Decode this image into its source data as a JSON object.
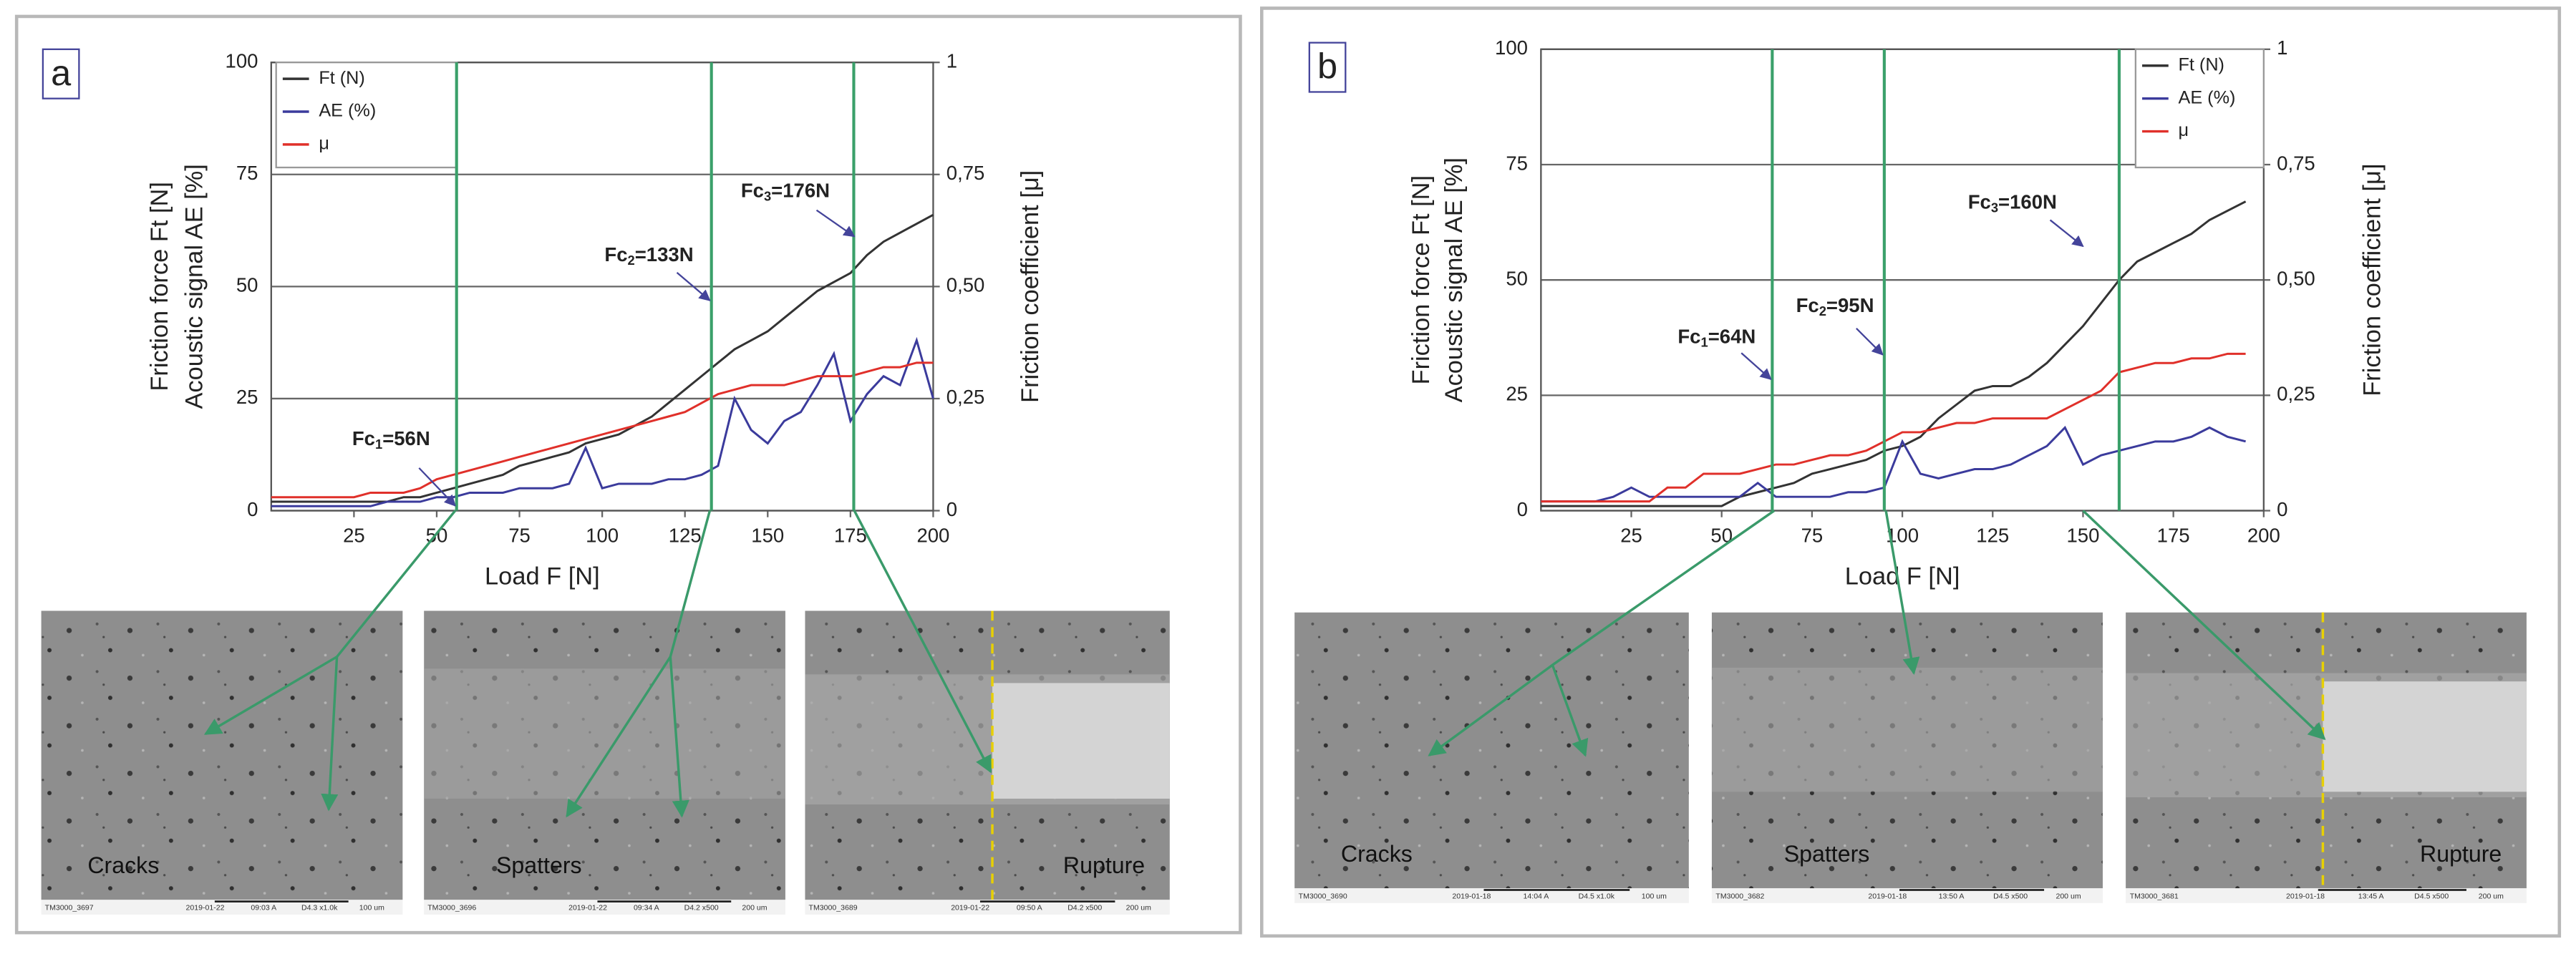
{
  "chart_data": [
    {
      "type": "line",
      "panel_label": "a",
      "x_label": "Load F [N]",
      "y_label_lines": [
        "Friction force Ft [N]",
        "Acoustic signal AE [%]"
      ],
      "y2_label": "Friction coefficient [μ]",
      "xlim": [
        0,
        200
      ],
      "xticks": [
        25,
        50,
        75,
        100,
        125,
        150,
        175,
        200
      ],
      "ylim": [
        0,
        100
      ],
      "yticks": [
        0,
        25,
        50,
        75,
        100
      ],
      "y2lim": [
        0,
        1
      ],
      "y2ticks": [
        0,
        {
          "value": 0.25,
          "label": "0,25"
        },
        {
          "value": 0.5,
          "label": "0,50"
        },
        {
          "value": 0.75,
          "label": "0,75"
        },
        1
      ],
      "legend": "upper left",
      "grid": true,
      "x": [
        0,
        5,
        10,
        15,
        20,
        25,
        30,
        35,
        40,
        45,
        50,
        55,
        60,
        65,
        70,
        75,
        80,
        85,
        90,
        95,
        100,
        105,
        110,
        115,
        120,
        125,
        130,
        135,
        140,
        145,
        150,
        155,
        160,
        165,
        170,
        175,
        180,
        185,
        190,
        195,
        200
      ],
      "series": [
        {
          "name": "Ft (N)",
          "color": "#333333",
          "values": [
            2,
            2,
            2,
            2,
            2,
            2,
            2,
            2,
            3,
            3,
            4,
            5,
            6,
            7,
            8,
            10,
            11,
            12,
            13,
            15,
            16,
            17,
            19,
            21,
            24,
            27,
            30,
            33,
            36,
            38,
            40,
            43,
            46,
            49,
            51,
            53,
            57,
            60,
            62,
            64,
            66
          ]
        },
        {
          "name": "AE (%)",
          "color": "#3b3b9c",
          "values": [
            1,
            1,
            1,
            1,
            1,
            1,
            1,
            2,
            2,
            2,
            3,
            3,
            4,
            4,
            4,
            5,
            5,
            5,
            6,
            14,
            5,
            6,
            6,
            6,
            7,
            7,
            8,
            10,
            25,
            18,
            15,
            20,
            22,
            28,
            35,
            20,
            26,
            30,
            28,
            38,
            25
          ]
        },
        {
          "name": "μ",
          "color": "#e0302a",
          "axis": "y2",
          "values": [
            0.03,
            0.03,
            0.03,
            0.03,
            0.03,
            0.03,
            0.04,
            0.04,
            0.04,
            0.05,
            0.07,
            0.08,
            0.09,
            0.1,
            0.11,
            0.12,
            0.13,
            0.14,
            0.15,
            0.16,
            0.17,
            0.18,
            0.19,
            0.2,
            0.21,
            0.22,
            0.24,
            0.26,
            0.27,
            0.28,
            0.28,
            0.28,
            0.29,
            0.3,
            0.3,
            0.3,
            0.31,
            0.32,
            0.32,
            0.33,
            0.33
          ]
        }
      ],
      "markers": [
        56,
        133,
        176
      ],
      "annotations": [
        {
          "main": "Fc",
          "sub": "1",
          "tail": "=56N"
        },
        {
          "main": "Fc",
          "sub": "2",
          "tail": "=133N"
        },
        {
          "main": "Fc",
          "sub": "3",
          "tail": "=176N"
        }
      ],
      "photos": [
        {
          "caption": "Cracks",
          "footer": [
            "TM3000_3697",
            "2019-01-22",
            "09:03 A",
            "D4.3 x1.0k",
            "100 um"
          ]
        },
        {
          "caption": "Spatters",
          "footer": [
            "TM3000_3696",
            "2019-01-22",
            "09:34 A",
            "D4.2 x500",
            "200 um"
          ]
        },
        {
          "caption": "Rupture",
          "footer": [
            "TM3000_3689",
            "2019-01-22",
            "09:50 A",
            "D4.2 x500",
            "200 um"
          ]
        }
      ]
    },
    {
      "type": "line",
      "panel_label": "b",
      "x_label": "Load F [N]",
      "y_label_lines": [
        "Friction force Ft [N]",
        "Acoustic signal AE [%]"
      ],
      "y2_label": "Friction coefficient [μ]",
      "xlim": [
        0,
        200
      ],
      "xticks": [
        25,
        50,
        75,
        100,
        125,
        150,
        175,
        200
      ],
      "ylim": [
        0,
        100
      ],
      "yticks": [
        0,
        25,
        50,
        75,
        100
      ],
      "y2lim": [
        0,
        1
      ],
      "y2ticks": [
        0,
        {
          "value": 0.25,
          "label": "0,25"
        },
        {
          "value": 0.5,
          "label": "0,50"
        },
        {
          "value": 0.75,
          "label": "0,75"
        },
        1
      ],
      "legend": "upper right",
      "grid": true,
      "x": [
        0,
        5,
        10,
        15,
        20,
        25,
        30,
        35,
        40,
        45,
        50,
        55,
        60,
        65,
        70,
        75,
        80,
        85,
        90,
        95,
        100,
        105,
        110,
        115,
        120,
        125,
        130,
        135,
        140,
        145,
        150,
        155,
        160,
        165,
        170,
        175,
        180,
        185,
        190,
        195
      ],
      "series": [
        {
          "name": "Ft (N)",
          "color": "#333333",
          "values": [
            1,
            1,
            1,
            1,
            1,
            1,
            1,
            1,
            1,
            1,
            1,
            3,
            4,
            5,
            6,
            8,
            9,
            10,
            11,
            13,
            14,
            16,
            20,
            23,
            26,
            27,
            27,
            29,
            32,
            36,
            40,
            45,
            50,
            54,
            56,
            58,
            60,
            63,
            65,
            67
          ]
        },
        {
          "name": "AE (%)",
          "color": "#3b3b9c",
          "values": [
            2,
            2,
            2,
            2,
            3,
            5,
            3,
            3,
            3,
            3,
            3,
            3,
            6,
            3,
            3,
            3,
            3,
            4,
            4,
            5,
            15,
            8,
            7,
            8,
            9,
            9,
            10,
            12,
            14,
            18,
            10,
            12,
            13,
            14,
            15,
            15,
            16,
            18,
            16,
            15
          ]
        },
        {
          "name": "μ",
          "color": "#e0302a",
          "axis": "y2",
          "values": [
            0.02,
            0.02,
            0.02,
            0.02,
            0.02,
            0.02,
            0.02,
            0.05,
            0.05,
            0.08,
            0.08,
            0.08,
            0.09,
            0.1,
            0.1,
            0.11,
            0.12,
            0.12,
            0.13,
            0.15,
            0.17,
            0.17,
            0.18,
            0.19,
            0.19,
            0.2,
            0.2,
            0.2,
            0.2,
            0.22,
            0.24,
            0.26,
            0.3,
            0.31,
            0.32,
            0.32,
            0.33,
            0.33,
            0.34,
            0.34
          ]
        }
      ],
      "markers": [
        64,
        95,
        160
      ],
      "annotations": [
        {
          "main": "Fc",
          "sub": "1",
          "tail": "=64N"
        },
        {
          "main": "Fc",
          "sub": "2",
          "tail": "=95N"
        },
        {
          "main": "Fc",
          "sub": "3",
          "tail": "=160N"
        }
      ],
      "photos": [
        {
          "caption": "Cracks",
          "footer": [
            "TM3000_3690",
            "2019-01-18",
            "14:04 A",
            "D4.5 x1.0k",
            "100 um"
          ]
        },
        {
          "caption": "Spatters",
          "footer": [
            "TM3000_3682",
            "2019-01-18",
            "13:50 A",
            "D4.5 x500",
            "200 um"
          ]
        },
        {
          "caption": "Rupture",
          "footer": [
            "TM3000_3681",
            "2019-01-18",
            "13:45 A",
            "D4.5 x500",
            "200 um"
          ]
        }
      ]
    }
  ]
}
